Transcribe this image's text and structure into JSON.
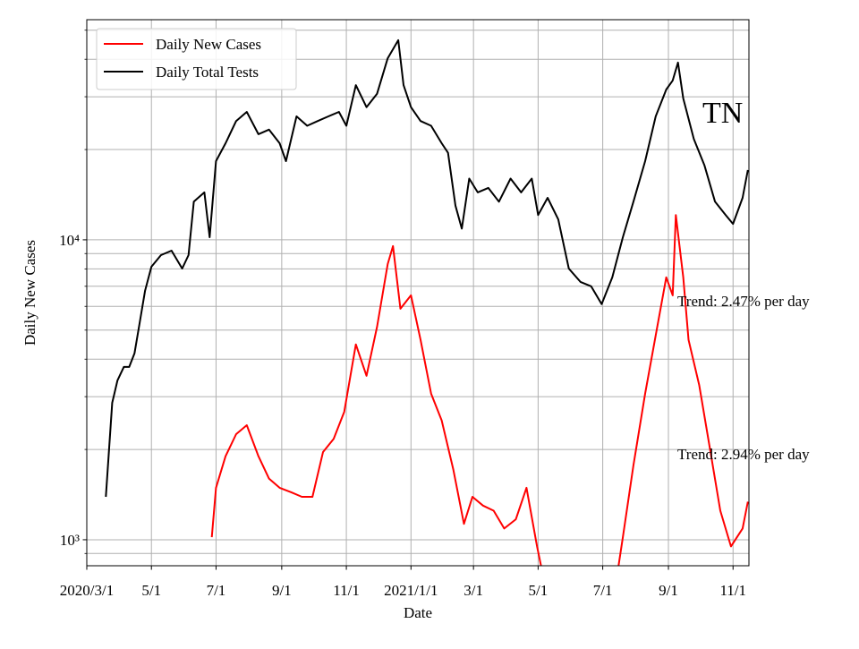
{
  "chart_data": {
    "type": "line",
    "log_y": true,
    "grid": true,
    "legend": "upper left",
    "xlabel": "Date",
    "ylabel": "Daily New Cases",
    "annotations": [
      "TN",
      "Trend: 2.47% per day",
      "Trend: 2.94% per day"
    ],
    "xlim": [
      "2020-03-01",
      "2021-11-16"
    ],
    "xticks": [
      {
        "value": "2020-03-01",
        "label": "2020/3/1"
      },
      {
        "value": "2020-05-01",
        "label": "5/1"
      },
      {
        "value": "2020-07-01",
        "label": "7/1"
      },
      {
        "value": "2020-09-01",
        "label": "9/1"
      },
      {
        "value": "2020-11-01",
        "label": "11/1"
      },
      {
        "value": "2021-01-01",
        "label": "2021/1/1"
      },
      {
        "value": "2021-03-01",
        "label": "3/1"
      },
      {
        "value": "2021-05-01",
        "label": "5/1"
      },
      {
        "value": "2021-07-01",
        "label": "7/1"
      },
      {
        "value": "2021-09-01",
        "label": "9/1"
      },
      {
        "value": "2021-11-01",
        "label": "11/1"
      }
    ],
    "ylim": [
      819,
      54200
    ],
    "yticks": [
      {
        "value": 1000,
        "label": "10³"
      },
      {
        "value": 10000,
        "label": "10⁴"
      }
    ],
    "yminor": [
      900,
      2000,
      3000,
      4000,
      5000,
      6000,
      7000,
      8000,
      9000,
      20000,
      30000,
      40000,
      50000
    ],
    "series": [
      {
        "name": "Daily New Cases",
        "color": "#ff0000",
        "x": [
          "2020-06-27",
          "2020-07-01",
          "2020-07-10",
          "2020-07-20",
          "2020-07-30",
          "2020-08-10",
          "2020-08-20",
          "2020-08-30",
          "2020-09-10",
          "2020-09-20",
          "2020-09-30",
          "2020-10-10",
          "2020-10-20",
          "2020-10-30",
          "2020-11-10",
          "2020-11-20",
          "2020-11-30",
          "2020-12-10",
          "2020-12-15",
          "2020-12-22",
          "2021-01-01",
          "2021-01-10",
          "2021-01-20",
          "2021-01-30",
          "2021-02-10",
          "2021-02-20",
          "2021-02-28",
          "2021-03-10",
          "2021-03-20",
          "2021-03-30",
          "2021-04-10",
          "2021-04-20",
          "2021-04-30",
          "2021-05-05",
          "2021-06-10",
          "2021-07-15",
          "2021-07-20",
          "2021-07-30",
          "2021-08-10",
          "2021-08-20",
          "2021-08-30",
          "2021-09-05",
          "2021-09-08",
          "2021-09-15",
          "2021-09-20",
          "2021-09-30",
          "2021-10-10",
          "2021-10-20",
          "2021-10-30",
          "2021-11-10",
          "2021-11-15"
        ],
        "values": [
          1020,
          1490,
          1900,
          2250,
          2410,
          1900,
          1600,
          1490,
          1440,
          1390,
          1390,
          1960,
          2170,
          2670,
          4480,
          3520,
          5130,
          8300,
          9530,
          5890,
          6530,
          4640,
          3070,
          2500,
          1710,
          1130,
          1390,
          1300,
          1250,
          1090,
          1170,
          1490,
          950,
          780,
          null,
          780,
          1020,
          1770,
          3070,
          4800,
          7500,
          6530,
          12100,
          7500,
          4640,
          3280,
          2030,
          1250,
          950,
          1090,
          1340
        ]
      },
      {
        "name": "Daily Total Tests",
        "color": "#000000",
        "x": [
          "2020-03-19",
          "2020-03-25",
          "2020-03-30",
          "2020-04-05",
          "2020-04-10",
          "2020-04-15",
          "2020-04-20",
          "2020-04-25",
          "2020-05-01",
          "2020-05-10",
          "2020-05-20",
          "2020-05-30",
          "2020-06-05",
          "2020-06-10",
          "2020-06-20",
          "2020-06-25",
          "2020-07-01",
          "2020-07-10",
          "2020-07-20",
          "2020-07-30",
          "2020-08-10",
          "2020-08-20",
          "2020-08-30",
          "2020-09-05",
          "2020-09-15",
          "2020-09-25",
          "2020-10-05",
          "2020-10-15",
          "2020-10-25",
          "2020-11-01",
          "2020-11-10",
          "2020-11-20",
          "2020-11-30",
          "2020-12-10",
          "2020-12-20",
          "2020-12-25",
          "2021-01-01",
          "2021-01-10",
          "2021-01-20",
          "2021-01-30",
          "2021-02-05",
          "2021-02-12",
          "2021-02-18",
          "2021-02-25",
          "2021-03-05",
          "2021-03-15",
          "2021-03-25",
          "2021-04-05",
          "2021-04-15",
          "2021-04-25",
          "2021-05-01",
          "2021-05-10",
          "2021-05-20",
          "2021-05-30",
          "2021-06-10",
          "2021-06-20",
          "2021-06-30",
          "2021-07-10",
          "2021-07-20",
          "2021-07-30",
          "2021-08-10",
          "2021-08-20",
          "2021-08-30",
          "2021-09-05",
          "2021-09-10",
          "2021-09-15",
          "2021-09-25",
          "2021-10-05",
          "2021-10-15",
          "2021-10-25",
          "2021-11-01",
          "2021-11-10",
          "2021-11-15"
        ],
        "values": [
          1390,
          2860,
          3400,
          3770,
          3770,
          4180,
          5310,
          6760,
          8130,
          8890,
          9200,
          8020,
          8890,
          13400,
          14400,
          10200,
          18300,
          21000,
          24900,
          26700,
          22500,
          23300,
          21000,
          18300,
          25800,
          24000,
          24900,
          25800,
          26700,
          24000,
          32800,
          27700,
          30700,
          40300,
          46300,
          32800,
          27700,
          24900,
          24000,
          21000,
          19500,
          13000,
          10900,
          16000,
          14400,
          14900,
          13400,
          16000,
          14400,
          16000,
          12100,
          13800,
          11700,
          8020,
          7240,
          7000,
          6100,
          7500,
          10200,
          13400,
          18300,
          25800,
          31700,
          34000,
          39000,
          29600,
          21700,
          17700,
          13400,
          12100,
          11300,
          13800,
          17100
        ]
      }
    ]
  }
}
